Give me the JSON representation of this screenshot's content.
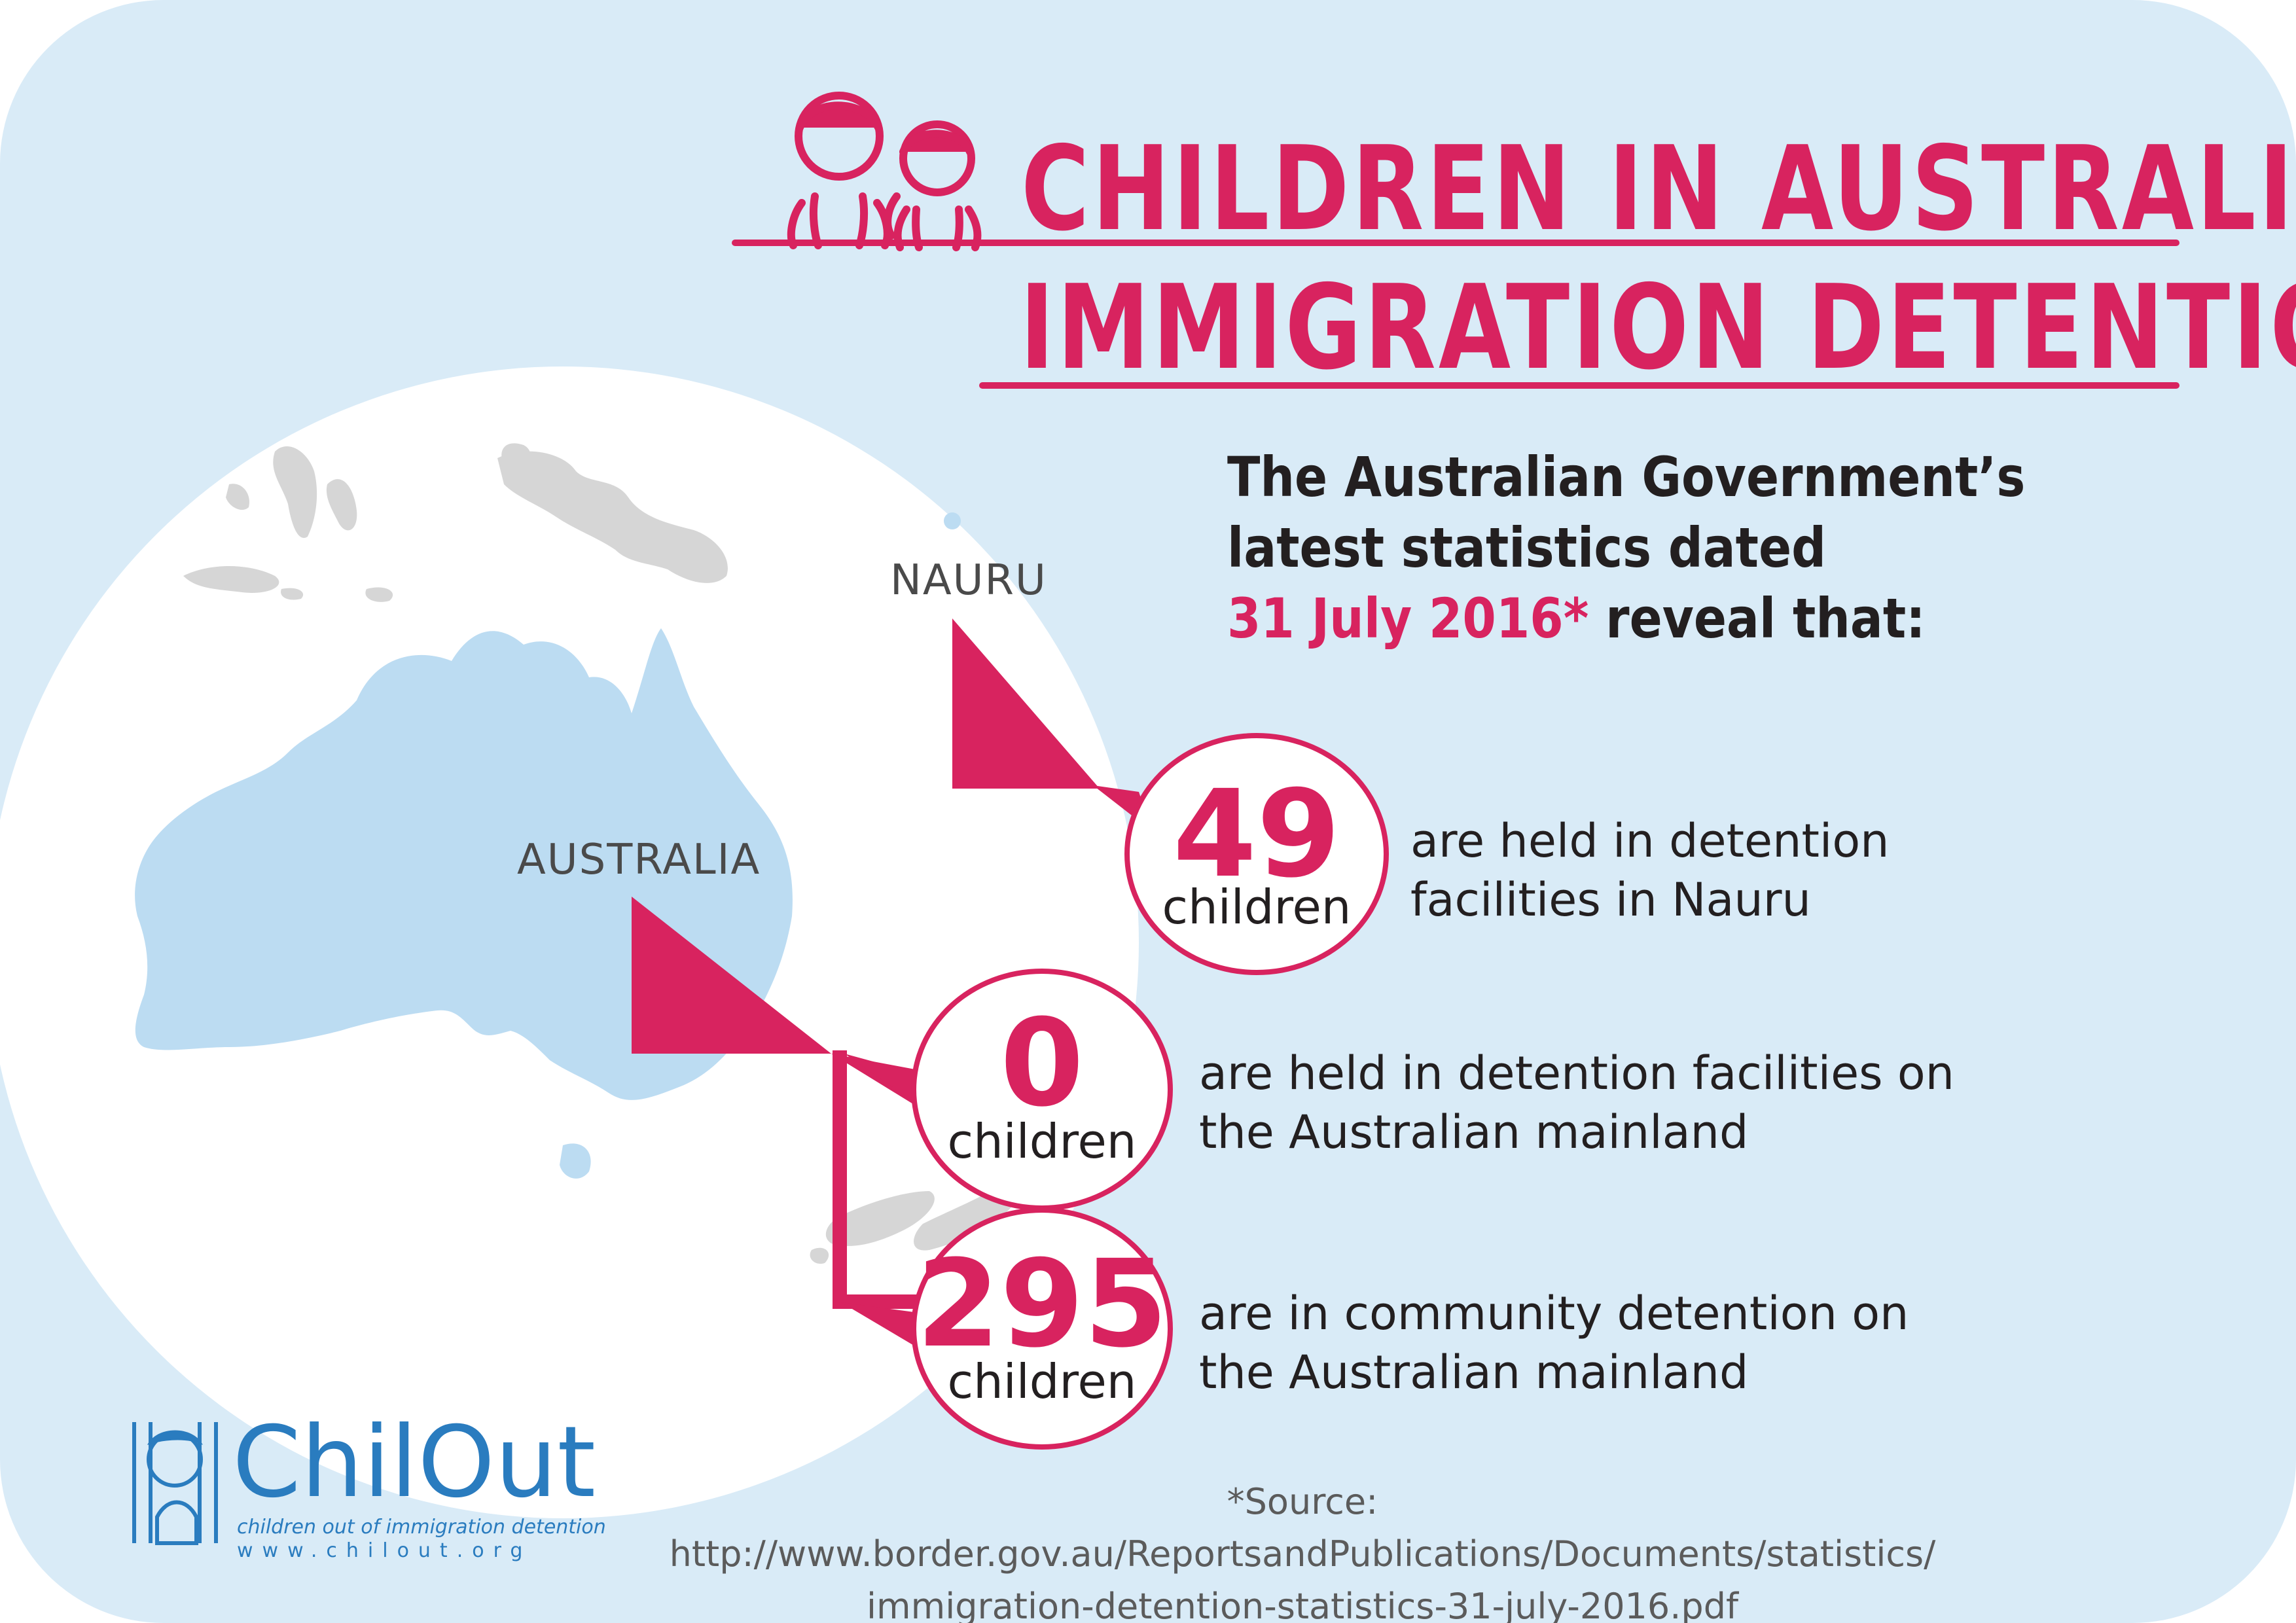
{
  "title": {
    "line1": "CHILDREN IN AUSTRALIAN",
    "line2": "IMMIGRATION DETENTION"
  },
  "intro": {
    "line1": "The Australian Government’s",
    "line2": "latest statistics dated",
    "date": "31 July 2016*",
    "tail": " reveal that:"
  },
  "map": {
    "nauru_label": "NAURU",
    "australia_label": "AUSTRALIA"
  },
  "stats": [
    {
      "number": "49",
      "unit": "children",
      "desc_line1": "are held in detention",
      "desc_line2": "facilities in Nauru"
    },
    {
      "number": "0",
      "unit": "children",
      "desc_line1": "are held in detention facilities on",
      "desc_line2": "the Australian mainland"
    },
    {
      "number": "295",
      "unit": "children",
      "desc_line1": "are in community detention on",
      "desc_line2": "the Australian mainland"
    }
  ],
  "source": {
    "line1": "*Source: http://www.border.gov.au/ReportsandPublications/Documents/statistics/",
    "line2": "immigration-detention-statistics-31-july-2016.pdf"
  },
  "logo": {
    "name": "ChilOut",
    "tagline": "children out of immigration detention",
    "url": "www.chilout.org"
  },
  "colors": {
    "accent": "#d8235f",
    "background": "#d9ebf7",
    "land_australia": "#bcdcf2",
    "land_other": "#d6d6d6",
    "logo_blue": "#2a7cbf"
  }
}
